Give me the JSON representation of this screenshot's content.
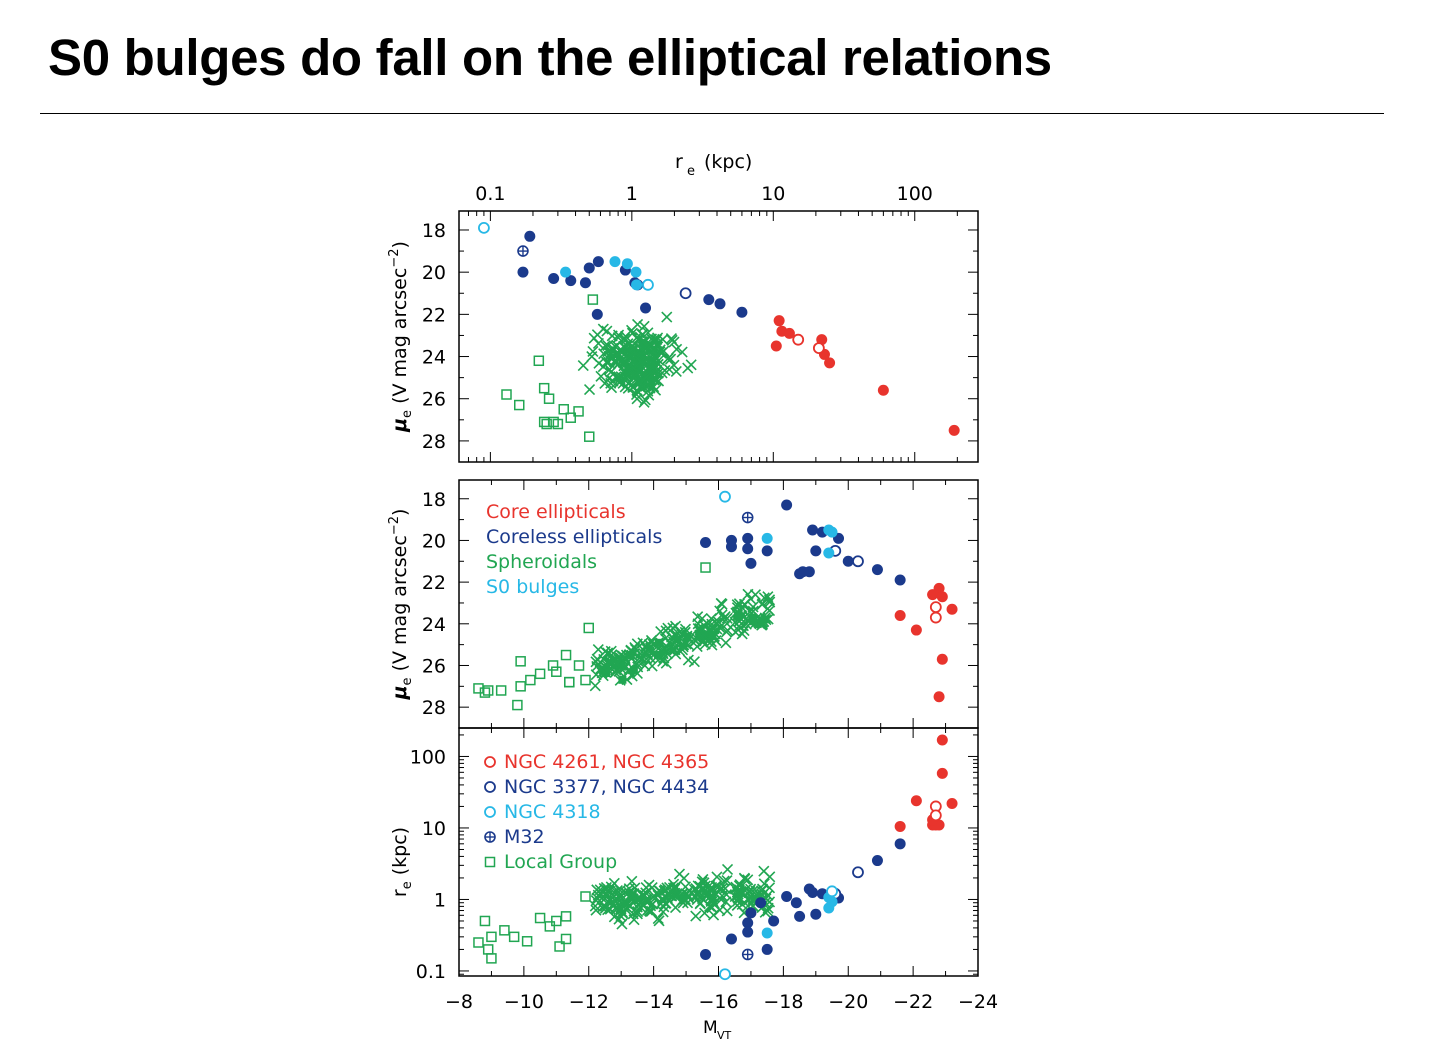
{
  "slide": {
    "title": "S0 bulges do fall on the elliptical relations"
  },
  "colors": {
    "core": "#e8342d",
    "coreless": "#1b3a8c",
    "spheroidal": "#21a652",
    "s0": "#27b8e6",
    "axis": "#000000"
  },
  "chart_data": [
    {
      "type": "scatter",
      "panel": "top",
      "x_quantity": "r_e",
      "x_label_top": "r",
      "x_label_sub": "e",
      "x_label_unit": "(kpc)",
      "x_scale": "log",
      "x_range": [
        0.06,
        280
      ],
      "x_ticks": [
        "0.1",
        "1",
        "10",
        "100"
      ],
      "x_tick_values": [
        0.1,
        1,
        10,
        100
      ],
      "y_label": "μ",
      "y_label_sub": "e",
      "y_label_unit": "(V mag arcsec",
      "y_label_exp": "−2",
      "y_label_close": ")",
      "y_range": [
        17.1,
        29.0
      ],
      "y_inverted": true,
      "y_ticks": [
        "18",
        "20",
        "22",
        "24",
        "26",
        "28"
      ],
      "y_tick_values": [
        18,
        20,
        22,
        24,
        26,
        28
      ],
      "series": [
        {
          "group": "core",
          "marker": "filled-circle",
          "x": [
            11,
            11.5,
            13,
            10.5,
            22,
            23,
            25,
            60,
            190
          ],
          "y": [
            22.3,
            22.8,
            22.9,
            23.5,
            23.2,
            23.9,
            24.3,
            25.6,
            27.5
          ]
        },
        {
          "group": "core",
          "marker": "open-circle",
          "x": [
            15,
            21
          ],
          "y": [
            23.2,
            23.6
          ]
        },
        {
          "group": "coreless",
          "marker": "filled-circle",
          "x": [
            0.17,
            0.19,
            0.28,
            0.37,
            0.47,
            0.5,
            0.58,
            0.9,
            1.05,
            1.1,
            1.25,
            0.57,
            3.5,
            4.2,
            6
          ],
          "y": [
            20.0,
            18.3,
            20.3,
            20.4,
            20.5,
            19.8,
            19.5,
            19.9,
            20.5,
            20.6,
            21.7,
            22.0,
            21.3,
            21.5,
            21.9
          ]
        },
        {
          "group": "coreless",
          "marker": "open-circle",
          "x": [
            2.4
          ],
          "y": [
            21.0
          ]
        },
        {
          "group": "m32",
          "marker": "crossed-circle",
          "x": [
            0.17
          ],
          "y": [
            19.0
          ]
        },
        {
          "group": "s0",
          "marker": "filled-circle",
          "x": [
            0.34,
            0.76,
            0.93,
            1.07,
            1.08
          ],
          "y": [
            20.0,
            19.5,
            19.6,
            20.0,
            20.6
          ]
        },
        {
          "group": "s0",
          "marker": "open-circle",
          "x": [
            0.09,
            1.3
          ],
          "y": [
            17.9,
            20.6
          ]
        },
        {
          "group": "spheroidal",
          "marker": "open-square",
          "x": [
            0.13,
            0.22,
            0.24,
            0.16,
            0.26,
            0.33,
            0.37,
            0.42,
            0.5,
            0.53,
            0.3,
            0.28,
            0.25,
            0.24
          ],
          "y": [
            25.8,
            24.2,
            25.5,
            26.3,
            26.0,
            26.5,
            26.9,
            26.6,
            27.8,
            21.3,
            27.2,
            27.1,
            27.2,
            27.1
          ]
        }
      ]
    },
    {
      "type": "scatter",
      "panel": "middle",
      "x_quantity": "M_VT",
      "x_range": [
        -8,
        -24
      ],
      "y_label": "μ",
      "y_label_sub": "e",
      "y_label_unit": "(V mag arcsec",
      "y_label_exp": "−2",
      "y_label_close": ")",
      "y_range": [
        17.1,
        29.0
      ],
      "y_inverted": true,
      "y_ticks": [
        "18",
        "20",
        "22",
        "24",
        "26",
        "28"
      ],
      "y_tick_values": [
        18,
        20,
        22,
        24,
        26,
        28
      ],
      "legend": [
        {
          "label": "Core ellipticals",
          "group": "core"
        },
        {
          "label": "Coreless ellipticals",
          "group": "coreless"
        },
        {
          "label": "Spheroidals",
          "group": "spheroidal"
        },
        {
          "label": "S0 bulges",
          "group": "s0"
        }
      ],
      "series": [
        {
          "group": "core",
          "marker": "filled-circle",
          "x": [
            -21.6,
            -22.1,
            -22.6,
            -22.8,
            -22.9,
            -23.2,
            -22.9,
            -22.8
          ],
          "y": [
            23.6,
            24.3,
            22.6,
            22.3,
            25.7,
            23.3,
            22.7,
            27.5
          ]
        },
        {
          "group": "core",
          "marker": "open-circle",
          "x": [
            -22.7,
            -22.7
          ],
          "y": [
            23.2,
            23.7
          ]
        },
        {
          "group": "coreless",
          "marker": "filled-circle",
          "x": [
            -15.6,
            -16.4,
            -16.9,
            -17.0,
            -17.5,
            -18.1,
            -18.5,
            -18.8,
            -19.2,
            -19.7,
            -20.9,
            -21.6,
            -16.4,
            -16.9,
            -20.0,
            -19.0,
            -18.9,
            -18.6
          ],
          "y": [
            20.1,
            20.3,
            20.4,
            21.1,
            20.5,
            18.3,
            21.6,
            21.5,
            19.6,
            19.9,
            21.4,
            21.9,
            20.0,
            19.9,
            21.0,
            20.5,
            19.5,
            21.5
          ]
        },
        {
          "group": "coreless",
          "marker": "open-circle",
          "x": [
            -19.6,
            -20.3
          ],
          "y": [
            20.5,
            21.0
          ]
        },
        {
          "group": "m32",
          "marker": "crossed-circle",
          "x": [
            -16.9
          ],
          "y": [
            18.9
          ]
        },
        {
          "group": "s0",
          "marker": "filled-circle",
          "x": [
            -17.5,
            -19.4,
            -19.5,
            -19.4
          ],
          "y": [
            19.9,
            19.5,
            19.6,
            20.6
          ]
        },
        {
          "group": "s0",
          "marker": "open-circle",
          "x": [
            -16.2
          ],
          "y": [
            17.9
          ]
        },
        {
          "group": "spheroidal",
          "marker": "open-square",
          "x": [
            -8.6,
            -8.8,
            -9.3,
            -9.8,
            -9.9,
            -10.2,
            -10.5,
            -10.9,
            -11.0,
            -11.3,
            -11.4,
            -11.7,
            -11.9,
            -12.0,
            -12.5,
            -15.6,
            -8.9,
            -9.9,
            -11.4
          ],
          "y": [
            27.1,
            27.3,
            27.2,
            27.9,
            25.8,
            26.7,
            26.4,
            26.0,
            26.3,
            25.5,
            26.8,
            26.0,
            26.7,
            24.2,
            26.3,
            21.3,
            27.2,
            27.0,
            26.8
          ]
        }
      ]
    },
    {
      "type": "scatter",
      "panel": "bottom",
      "x_label": "M",
      "x_label_sub": "VT",
      "x_range": [
        -8,
        -24
      ],
      "x_ticks": [
        "−8",
        "−10",
        "−12",
        "−14",
        "−16",
        "−18",
        "−20",
        "−22",
        "−24"
      ],
      "x_tick_values": [
        -8,
        -10,
        -12,
        -14,
        -16,
        -18,
        -20,
        -22,
        -24
      ],
      "y_label": "r",
      "y_label_sub": "e",
      "y_label_unit": "(kpc)",
      "y_scale": "log",
      "y_range": [
        0.085,
        250
      ],
      "y_ticks": [
        "0.1",
        "1",
        "10",
        "100"
      ],
      "y_tick_values": [
        0.1,
        1,
        10,
        100
      ],
      "legend": [
        {
          "label": "NGC 4261, NGC 4365",
          "group": "core",
          "marker": "open-circle"
        },
        {
          "label": "NGC 3377, NGC 4434",
          "group": "coreless",
          "marker": "open-circle"
        },
        {
          "label": "NGC 4318",
          "group": "s0",
          "marker": "open-circle"
        },
        {
          "label": "M32",
          "group": "coreless",
          "marker": "crossed-circle"
        },
        {
          "label": "Local Group",
          "group": "spheroidal",
          "marker": "open-square"
        }
      ],
      "series": [
        {
          "group": "core",
          "marker": "filled-circle",
          "x": [
            -21.6,
            -22.1,
            -22.6,
            -22.7,
            -22.9,
            -22.9,
            -23.2,
            -22.8,
            -22.6
          ],
          "y": [
            10.5,
            24,
            11,
            11,
            58,
            170,
            22,
            11,
            13
          ]
        },
        {
          "group": "core",
          "marker": "open-circle",
          "x": [
            -22.7,
            -22.7
          ],
          "y": [
            20,
            15
          ]
        },
        {
          "group": "coreless",
          "marker": "filled-circle",
          "x": [
            -15.6,
            -16.4,
            -16.9,
            -17.0,
            -17.5,
            -17.7,
            -18.1,
            -18.5,
            -18.8,
            -18.9,
            -19.2,
            -19.7,
            -20.9,
            -21.6,
            -16.9,
            -17.3,
            -18.4,
            -19.0
          ],
          "y": [
            0.17,
            0.28,
            0.47,
            0.65,
            0.2,
            0.5,
            1.1,
            0.58,
            1.4,
            1.25,
            1.2,
            1.05,
            3.5,
            6,
            0.35,
            0.9,
            0.9,
            0.62
          ]
        },
        {
          "group": "coreless",
          "marker": "open-circle",
          "x": [
            -19.6,
            -20.3
          ],
          "y": [
            1.2,
            2.4
          ]
        },
        {
          "group": "m32",
          "marker": "crossed-circle",
          "x": [
            -16.9
          ],
          "y": [
            0.17
          ]
        },
        {
          "group": "s0",
          "marker": "filled-circle",
          "x": [
            -17.5,
            -19.4,
            -19.5,
            -19.4
          ],
          "y": [
            0.34,
            0.76,
            0.93,
            1.07
          ]
        },
        {
          "group": "s0",
          "marker": "open-circle",
          "x": [
            -16.2,
            -19.5
          ],
          "y": [
            0.09,
            1.3
          ]
        },
        {
          "group": "spheroidal",
          "marker": "open-square",
          "x": [
            -8.6,
            -8.8,
            -8.9,
            -9.0,
            -9.4,
            -9.7,
            -10.1,
            -10.5,
            -10.8,
            -11.0,
            -11.1,
            -11.3,
            -11.9,
            -9.0,
            -11.3
          ],
          "y": [
            0.25,
            0.5,
            0.2,
            0.3,
            0.37,
            0.3,
            0.26,
            0.55,
            0.42,
            0.5,
            0.22,
            0.58,
            1.1,
            0.15,
            0.28
          ]
        }
      ]
    }
  ]
}
